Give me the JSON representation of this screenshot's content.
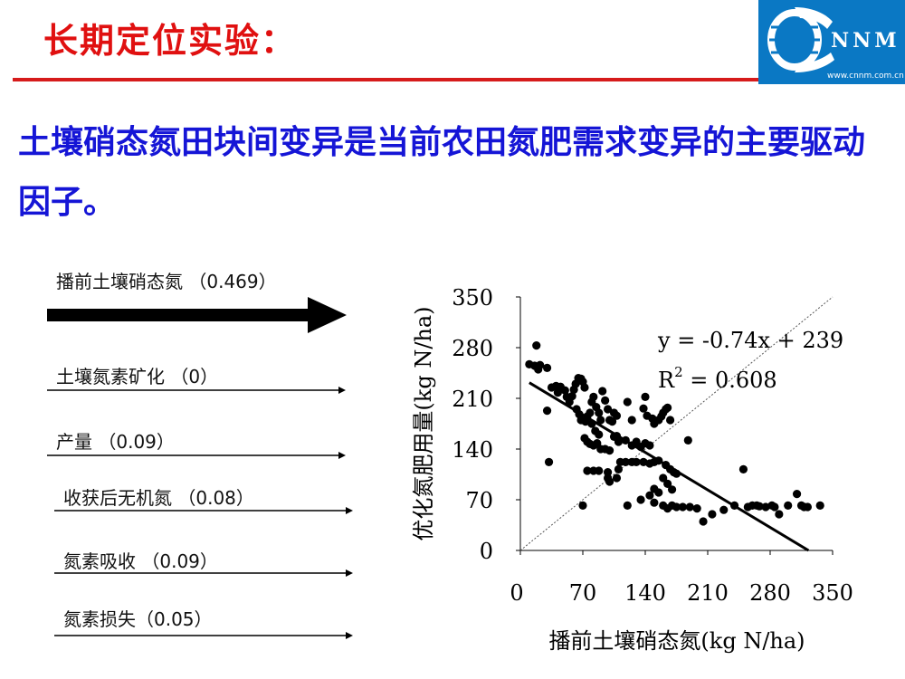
{
  "slide_title": "长期定位实验：",
  "logo": {
    "letters": "NNM",
    "url": "www.cnnm.com.cn"
  },
  "headline": "土壤硝态氮田块间变异是当前农田氮肥需求变异的主要驱动因子。",
  "factors": [
    {
      "label": "播前土壤硝态氮 （0.469）",
      "value": 0.469,
      "emphasis": true
    },
    {
      "label": "土壤氮素矿化 （0）",
      "value": 0
    },
    {
      "label": "产量 （0.09）",
      "value": 0.09
    },
    {
      "label": "收获后无机氮 （0.08）",
      "value": 0.08
    },
    {
      "label": "氮素吸收 （0.09）",
      "value": 0.09
    },
    {
      "label": "氮素损失（0.05）",
      "value": 0.05
    }
  ],
  "colors": {
    "title": "#e01010",
    "headline": "#1515d6",
    "rule": "#d61b1b",
    "logo_bg": "#0a78c4"
  },
  "chart_data": {
    "type": "scatter",
    "xlabel": "播前土壤硝态氮(kg N/ha)",
    "ylabel": "优化氮肥用量(kg N/ha)",
    "xlim": [
      0,
      350
    ],
    "ylim": [
      0,
      350
    ],
    "xticks": [
      0,
      70,
      140,
      210,
      280,
      350
    ],
    "yticks": [
      0,
      70,
      140,
      210,
      280,
      350
    ],
    "equation": "y = -0.74x + 239",
    "r2_prefix": "R",
    "r2_sup": "2",
    "r2_value": " = 0.608",
    "trendline": {
      "slope": -0.74,
      "intercept": 239
    },
    "reference_line": "1:1 dashed diagonal",
    "grid": false,
    "points": [
      [
        18,
        283
      ],
      [
        10,
        257
      ],
      [
        16,
        255
      ],
      [
        22,
        256
      ],
      [
        20,
        250
      ],
      [
        30,
        252
      ],
      [
        35,
        225
      ],
      [
        40,
        227
      ],
      [
        42,
        218
      ],
      [
        30,
        193
      ],
      [
        32,
        122
      ],
      [
        45,
        226
      ],
      [
        50,
        221
      ],
      [
        52,
        212
      ],
      [
        55,
        205
      ],
      [
        58,
        213
      ],
      [
        60,
        222
      ],
      [
        62,
        230
      ],
      [
        65,
        238
      ],
      [
        68,
        237
      ],
      [
        70,
        233
      ],
      [
        72,
        225
      ],
      [
        63,
        195
      ],
      [
        66,
        188
      ],
      [
        68,
        180
      ],
      [
        73,
        178
      ],
      [
        75,
        185
      ],
      [
        78,
        190
      ],
      [
        80,
        205
      ],
      [
        82,
        212
      ],
      [
        85,
        198
      ],
      [
        88,
        190
      ],
      [
        90,
        180
      ],
      [
        92,
        220
      ],
      [
        95,
        207
      ],
      [
        98,
        195
      ],
      [
        100,
        180
      ],
      [
        103,
        178
      ],
      [
        105,
        190
      ],
      [
        108,
        186
      ],
      [
        80,
        175
      ],
      [
        84,
        165
      ],
      [
        88,
        160
      ],
      [
        72,
        155
      ],
      [
        75,
        150
      ],
      [
        78,
        147
      ],
      [
        82,
        145
      ],
      [
        86,
        148
      ],
      [
        90,
        140
      ],
      [
        95,
        140
      ],
      [
        100,
        138
      ],
      [
        105,
        157
      ],
      [
        108,
        158
      ],
      [
        110,
        150
      ],
      [
        118,
        152
      ],
      [
        125,
        145
      ],
      [
        130,
        150
      ],
      [
        135,
        143
      ],
      [
        140,
        148
      ],
      [
        145,
        145
      ],
      [
        150,
        175
      ],
      [
        155,
        180
      ],
      [
        158,
        185
      ],
      [
        160,
        190
      ],
      [
        163,
        195
      ],
      [
        165,
        197
      ],
      [
        168,
        180
      ],
      [
        140,
        212
      ],
      [
        138,
        196
      ],
      [
        142,
        186
      ],
      [
        148,
        182
      ],
      [
        120,
        205
      ],
      [
        125,
        180
      ],
      [
        75,
        110
      ],
      [
        82,
        110
      ],
      [
        88,
        110
      ],
      [
        98,
        108
      ],
      [
        110,
        112
      ],
      [
        112,
        122
      ],
      [
        118,
        122
      ],
      [
        125,
        122
      ],
      [
        130,
        122
      ],
      [
        138,
        122
      ],
      [
        145,
        120
      ],
      [
        150,
        122
      ],
      [
        155,
        124
      ],
      [
        163,
        118
      ],
      [
        168,
        112
      ],
      [
        172,
        108
      ],
      [
        175,
        106
      ],
      [
        160,
        100
      ],
      [
        165,
        92
      ],
      [
        170,
        84
      ],
      [
        100,
        95
      ],
      [
        150,
        85
      ],
      [
        155,
        80
      ],
      [
        145,
        76
      ],
      [
        135,
        70
      ],
      [
        150,
        66
      ],
      [
        160,
        62
      ],
      [
        165,
        58
      ],
      [
        170,
        62
      ],
      [
        175,
        60
      ],
      [
        182,
        60
      ],
      [
        190,
        60
      ],
      [
        198,
        58
      ],
      [
        205,
        40
      ],
      [
        215,
        50
      ],
      [
        228,
        56
      ],
      [
        240,
        62
      ],
      [
        255,
        60
      ],
      [
        260,
        62
      ],
      [
        265,
        62
      ],
      [
        268,
        61
      ],
      [
        275,
        60
      ],
      [
        282,
        62
      ],
      [
        285,
        60
      ],
      [
        290,
        50
      ],
      [
        300,
        62
      ],
      [
        310,
        78
      ],
      [
        315,
        62
      ],
      [
        318,
        60
      ],
      [
        322,
        60
      ],
      [
        336,
        62
      ],
      [
        250,
        112
      ],
      [
        188,
        152
      ],
      [
        98,
        100
      ],
      [
        108,
        100
      ],
      [
        70,
        62
      ],
      [
        120,
        62
      ]
    ]
  }
}
